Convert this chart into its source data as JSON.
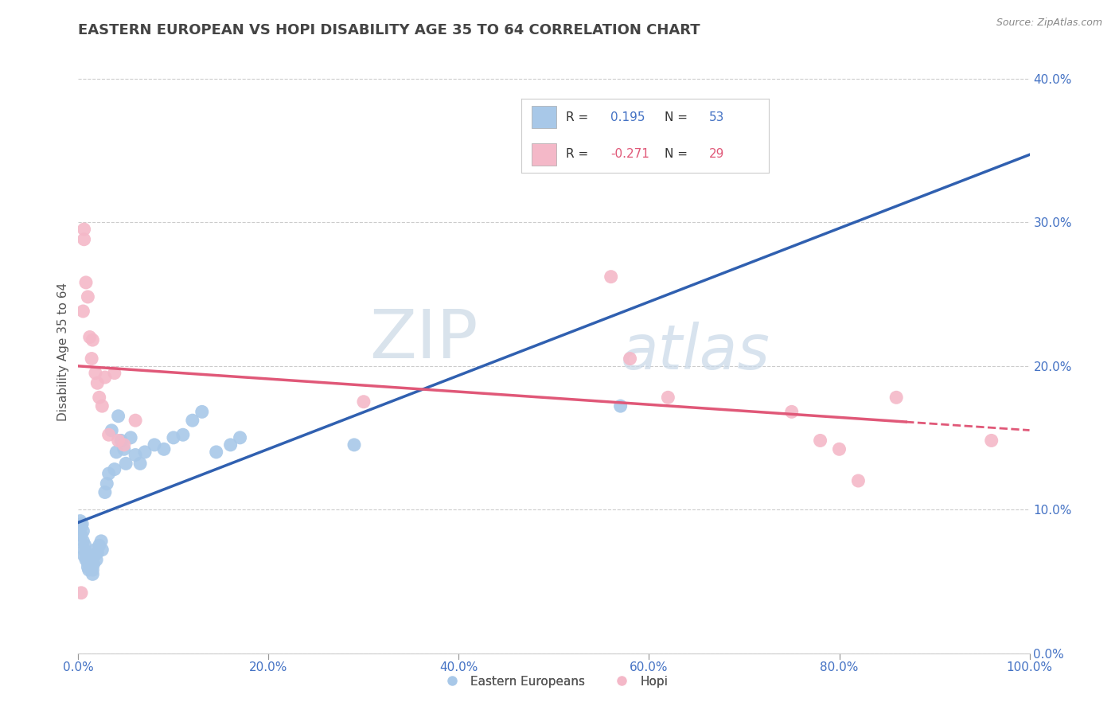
{
  "title": "EASTERN EUROPEAN VS HOPI DISABILITY AGE 35 TO 64 CORRELATION CHART",
  "source_text": "Source: ZipAtlas.com",
  "xlabel": "",
  "ylabel": "Disability Age 35 to 64",
  "legend_label_1": "Eastern Europeans",
  "legend_label_2": "Hopi",
  "r1": 0.195,
  "n1": 53,
  "r2": -0.271,
  "n2": 29,
  "color1": "#a8c8e8",
  "color2": "#f4b8c8",
  "line_color1": "#3060b0",
  "line_color2": "#e05878",
  "tick_color": "#4472c4",
  "background_color": "#ffffff",
  "grid_color": "#cccccc",
  "xlim": [
    0.0,
    1.0
  ],
  "ylim": [
    0.0,
    0.42
  ],
  "title_color": "#444444",
  "blue_scatter": [
    [
      0.002,
      0.092
    ],
    [
      0.003,
      0.088
    ],
    [
      0.003,
      0.082
    ],
    [
      0.004,
      0.09
    ],
    [
      0.005,
      0.078
    ],
    [
      0.005,
      0.085
    ],
    [
      0.006,
      0.072
    ],
    [
      0.006,
      0.068
    ],
    [
      0.007,
      0.075
    ],
    [
      0.008,
      0.07
    ],
    [
      0.008,
      0.065
    ],
    [
      0.009,
      0.068
    ],
    [
      0.01,
      0.063
    ],
    [
      0.01,
      0.06
    ],
    [
      0.011,
      0.058
    ],
    [
      0.012,
      0.062
    ],
    [
      0.013,
      0.065
    ],
    [
      0.014,
      0.06
    ],
    [
      0.015,
      0.055
    ],
    [
      0.015,
      0.058
    ],
    [
      0.016,
      0.062
    ],
    [
      0.017,
      0.068
    ],
    [
      0.018,
      0.072
    ],
    [
      0.019,
      0.065
    ],
    [
      0.02,
      0.07
    ],
    [
      0.022,
      0.075
    ],
    [
      0.024,
      0.078
    ],
    [
      0.025,
      0.072
    ],
    [
      0.028,
      0.112
    ],
    [
      0.03,
      0.118
    ],
    [
      0.032,
      0.125
    ],
    [
      0.035,
      0.155
    ],
    [
      0.038,
      0.128
    ],
    [
      0.04,
      0.14
    ],
    [
      0.042,
      0.165
    ],
    [
      0.045,
      0.148
    ],
    [
      0.048,
      0.142
    ],
    [
      0.05,
      0.132
    ],
    [
      0.055,
      0.15
    ],
    [
      0.06,
      0.138
    ],
    [
      0.065,
      0.132
    ],
    [
      0.07,
      0.14
    ],
    [
      0.08,
      0.145
    ],
    [
      0.09,
      0.142
    ],
    [
      0.1,
      0.15
    ],
    [
      0.11,
      0.152
    ],
    [
      0.12,
      0.162
    ],
    [
      0.13,
      0.168
    ],
    [
      0.145,
      0.14
    ],
    [
      0.16,
      0.145
    ],
    [
      0.17,
      0.15
    ],
    [
      0.29,
      0.145
    ],
    [
      0.57,
      0.172
    ]
  ],
  "pink_scatter": [
    [
      0.003,
      0.042
    ],
    [
      0.005,
      0.238
    ],
    [
      0.006,
      0.295
    ],
    [
      0.006,
      0.288
    ],
    [
      0.008,
      0.258
    ],
    [
      0.01,
      0.248
    ],
    [
      0.012,
      0.22
    ],
    [
      0.014,
      0.205
    ],
    [
      0.015,
      0.218
    ],
    [
      0.018,
      0.195
    ],
    [
      0.02,
      0.188
    ],
    [
      0.022,
      0.178
    ],
    [
      0.025,
      0.172
    ],
    [
      0.028,
      0.192
    ],
    [
      0.032,
      0.152
    ],
    [
      0.038,
      0.195
    ],
    [
      0.042,
      0.148
    ],
    [
      0.048,
      0.145
    ],
    [
      0.06,
      0.162
    ],
    [
      0.3,
      0.175
    ],
    [
      0.56,
      0.262
    ],
    [
      0.58,
      0.205
    ],
    [
      0.62,
      0.178
    ],
    [
      0.75,
      0.168
    ],
    [
      0.78,
      0.148
    ],
    [
      0.8,
      0.142
    ],
    [
      0.82,
      0.12
    ],
    [
      0.86,
      0.178
    ],
    [
      0.96,
      0.148
    ]
  ],
  "watermark_zip": "ZIP",
  "watermark_atlas": "atlas",
  "title_fontsize": 13,
  "label_fontsize": 11,
  "tick_fontsize": 11
}
